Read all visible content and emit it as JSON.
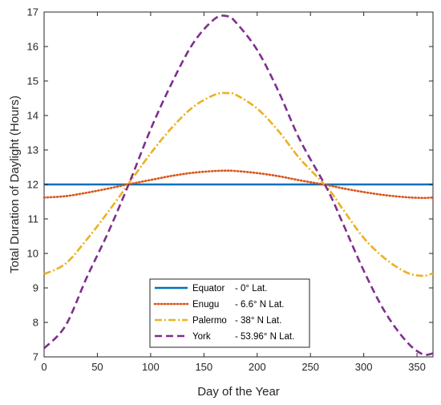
{
  "chart_data": {
    "type": "line",
    "xlabel": "Day of the Year",
    "ylabel": "Total Duration of Daylight (Hours)",
    "xlim": [
      0,
      365
    ],
    "ylim": [
      7,
      17
    ],
    "xticks": [
      0,
      50,
      100,
      150,
      200,
      250,
      300,
      350
    ],
    "yticks": [
      7,
      8,
      9,
      10,
      11,
      12,
      13,
      14,
      15,
      16,
      17
    ],
    "grid": false,
    "legend_placement": "bottom-center",
    "x": [
      0,
      20,
      40,
      60,
      80,
      100,
      120,
      140,
      160,
      172,
      180,
      200,
      220,
      240,
      266,
      280,
      300,
      320,
      340,
      355,
      365
    ],
    "series": [
      {
        "name": "Equator",
        "legend_name": "Equator",
        "legend_detail": "- 0° Lat.",
        "color": "#0072BD",
        "dash": "solid",
        "values": [
          12,
          12,
          12,
          12,
          12,
          12,
          12,
          12,
          12,
          12,
          12,
          12,
          12,
          12,
          12,
          12,
          12,
          12,
          12,
          12,
          12
        ]
      },
      {
        "name": "Enugu",
        "legend_name": "Enugu",
        "legend_detail": "- 6.6° N Lat.",
        "color": "#D95319",
        "dash": "dotted",
        "values": [
          11.62,
          11.66,
          11.76,
          11.88,
          12.01,
          12.13,
          12.25,
          12.34,
          12.39,
          12.4,
          12.39,
          12.33,
          12.24,
          12.12,
          11.98,
          11.89,
          11.78,
          11.69,
          11.63,
          11.61,
          11.62
        ]
      },
      {
        "name": "Palermo",
        "legend_name": "Palermo",
        "legend_detail": "- 38° N Lat.",
        "color": "#EDB120",
        "dash": "dashdot",
        "values": [
          9.4,
          9.7,
          10.4,
          11.2,
          12.05,
          12.9,
          13.65,
          14.25,
          14.6,
          14.65,
          14.6,
          14.2,
          13.55,
          12.75,
          11.9,
          11.3,
          10.45,
          9.85,
          9.45,
          9.35,
          9.42
        ]
      },
      {
        "name": "York",
        "legend_name": "York",
        "legend_detail": "- 53.96° N Lat.",
        "color": "#7E2F8E",
        "dash": "dashed",
        "values": [
          7.25,
          7.9,
          9.3,
          10.6,
          12.05,
          13.6,
          14.95,
          16.1,
          16.8,
          16.88,
          16.7,
          15.9,
          14.7,
          13.3,
          11.85,
          10.9,
          9.5,
          8.3,
          7.45,
          7.08,
          7.1
        ]
      }
    ]
  }
}
